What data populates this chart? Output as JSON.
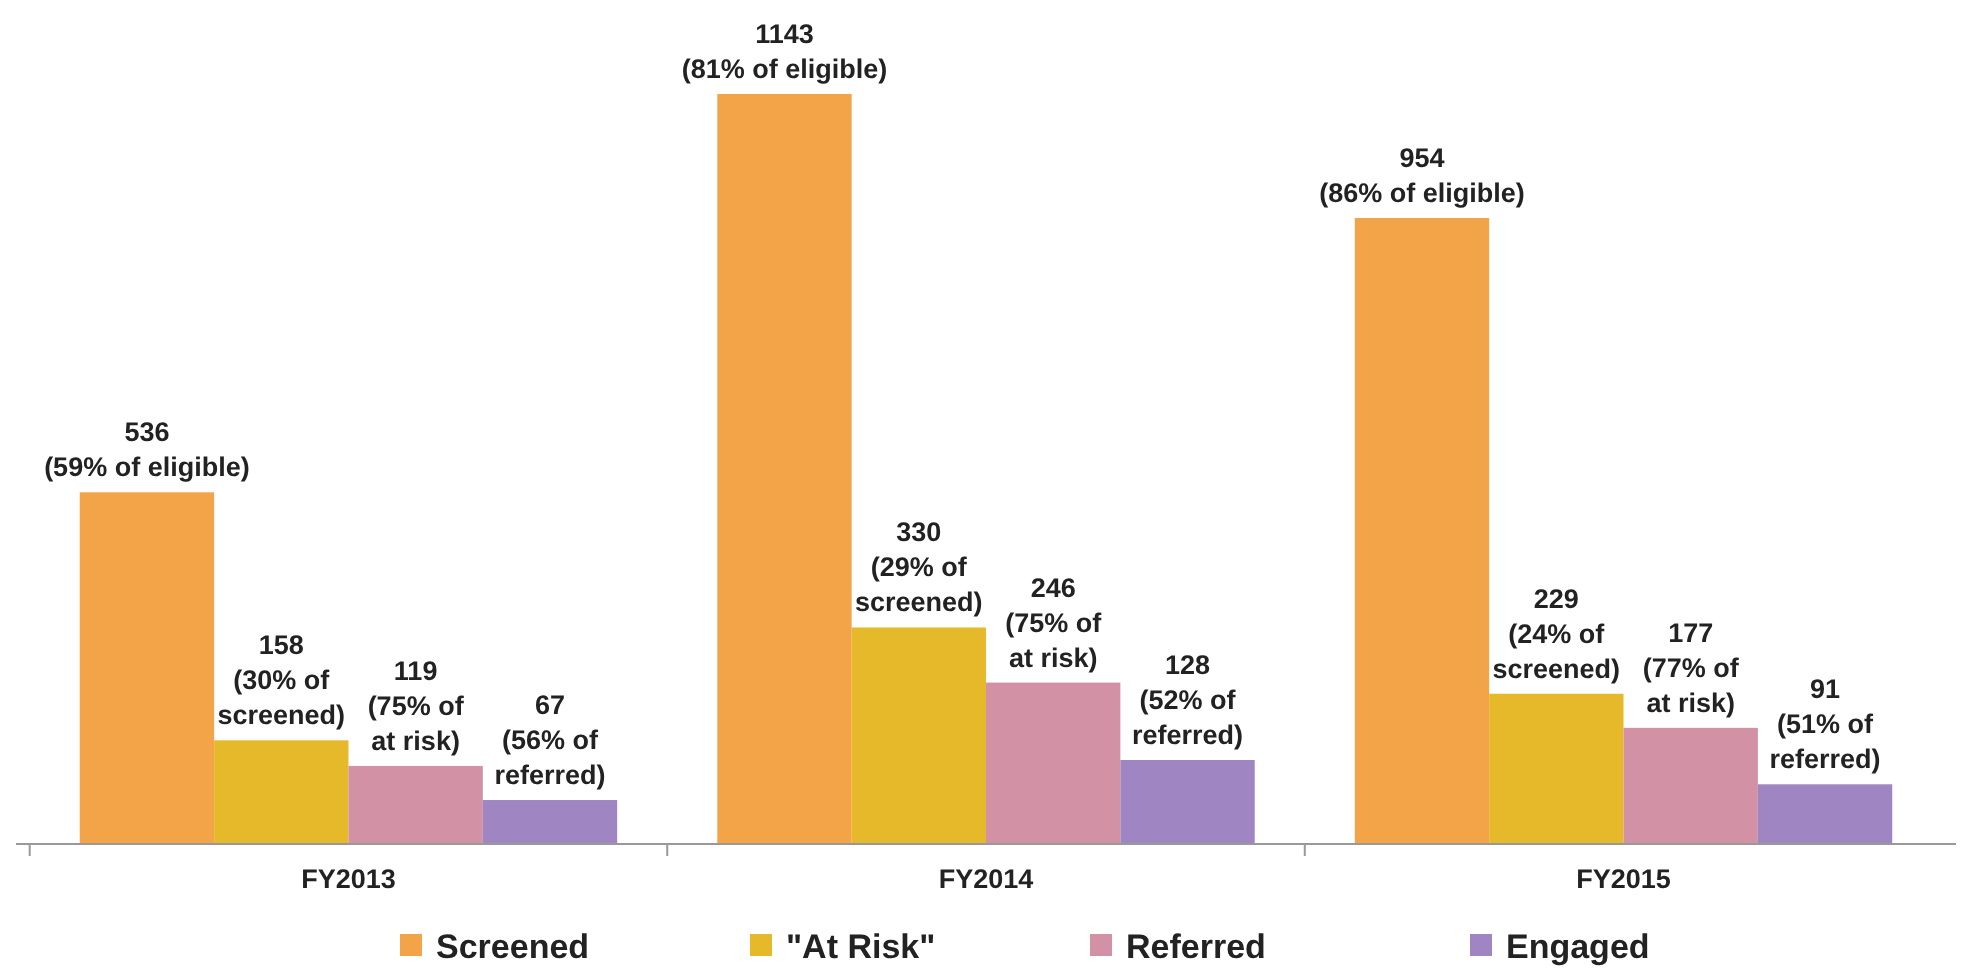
{
  "chart_data": {
    "type": "bar",
    "categories": [
      "FY2013",
      "FY2014",
      "FY2015"
    ],
    "legend": "bottom",
    "series": [
      {
        "name": "Screened",
        "color": "#f4a448",
        "values": [
          536,
          1143,
          954
        ],
        "value_labels": [
          "536\n(59% of eligible)",
          "1143\n(81% of eligible)",
          "954\n(86% of eligible)"
        ]
      },
      {
        "name": "\"At Risk\"",
        "color": "#e6b92b",
        "values": [
          158,
          330,
          229
        ],
        "value_labels": [
          "158\n(30% of\nscreened)",
          "330\n(29% of\nscreened)",
          "229\n(24% of\nscreened)"
        ]
      },
      {
        "name": "Referred",
        "color": "#d291a4",
        "values": [
          119,
          246,
          177
        ],
        "value_labels": [
          "119\n(75% of\nat risk)",
          "246\n(75% of\nat risk)",
          "177\n(77% of\nat risk)"
        ]
      },
      {
        "name": "Engaged",
        "color": "#9f86c2",
        "values": [
          67,
          128,
          91
        ],
        "value_labels": [
          "67\n(56% of\nreferred)",
          "128\n(52% of\nreferred)",
          "91\n(51% of\nreferred)"
        ]
      }
    ]
  }
}
